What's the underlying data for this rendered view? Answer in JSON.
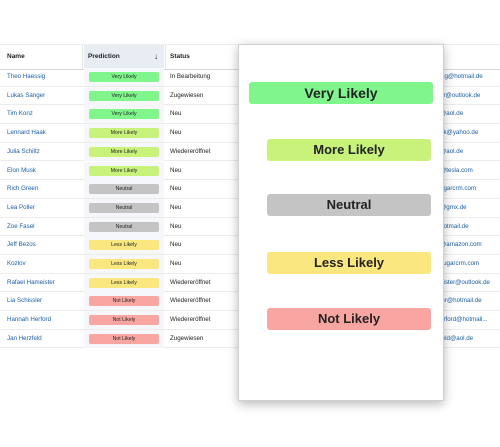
{
  "header": {
    "name": "Name",
    "prediction": "Prediction",
    "status": "Status",
    "sort_icon": "arrow-down-icon"
  },
  "colors": {
    "very_likely": "#7ff58c",
    "more_likely": "#c8f27a",
    "neutral": "#c4c4c4",
    "less_likely": "#fbe77f",
    "not_likely": "#f9a6a3"
  },
  "rows": [
    {
      "name": "Theo Haessig",
      "prediction": "Very Likely",
      "level": "very_likely",
      "status": "In Bearbeitung",
      "email": "sig@hotmail.de"
    },
    {
      "name": "Lukas Sanger",
      "prediction": "Very Likely",
      "level": "very_likely",
      "status": "Zugewiesen",
      "email": "er@outlook.de"
    },
    {
      "name": "Tim Konz",
      "prediction": "Very Likely",
      "level": "very_likely",
      "status": "Neu",
      "email": "@aol.de"
    },
    {
      "name": "Lennard Haak",
      "prediction": "More Likely",
      "level": "more_likely",
      "status": "Neu",
      "email": "ak@yahoo.de"
    },
    {
      "name": "Julia Schiltz",
      "prediction": "More Likely",
      "level": "more_likely",
      "status": "Wiedereröffnet",
      "email": "@aol.de"
    },
    {
      "name": "Elon Musk",
      "prediction": "More Likely",
      "level": "more_likely",
      "status": "Neu",
      "email": "@tesla.com"
    },
    {
      "name": "Rich Green",
      "prediction": "Neutral",
      "level": "neutral",
      "status": "Neu",
      "email": "ugarcrm.com"
    },
    {
      "name": "Lea Poller",
      "prediction": "Neutral",
      "level": "neutral",
      "status": "Neu",
      "email": "@gmx.de"
    },
    {
      "name": "Zoe Fasel",
      "prediction": "Neutral",
      "level": "neutral",
      "status": "Neu",
      "email": "hotmail.de"
    },
    {
      "name": "Jeff Bezos",
      "prediction": "Less Likely",
      "level": "less_likely",
      "status": "Neu",
      "email": "@amazon.com"
    },
    {
      "name": "Kozlov",
      "prediction": "Less Likely",
      "level": "less_likely",
      "status": "Neu",
      "email": "sugarcrm.com"
    },
    {
      "name": "Rafael Hameister",
      "prediction": "Less Likely",
      "level": "less_likely",
      "status": "Wiedereröffnet",
      "email": "eister@outlook.de"
    },
    {
      "name": "Lia Schissler",
      "prediction": "Not Likely",
      "level": "not_likely",
      "status": "Wiedereröffnet",
      "email": "ler@hotmail.de"
    },
    {
      "name": "Hannah Herford",
      "prediction": "Not Likely",
      "level": "not_likely",
      "status": "Wiedereröffnet",
      "email": "erford@hotmail..."
    },
    {
      "name": "Jan Herzfeld",
      "prediction": "Not Likely",
      "level": "not_likely",
      "status": "Zugewiesen",
      "email": "feld@aol.de"
    }
  ],
  "popup": {
    "very_likely": "Very Likely",
    "more_likely": "More Likely",
    "neutral": "Neutral",
    "less_likely": "Less Likely",
    "not_likely": "Not Likely"
  }
}
